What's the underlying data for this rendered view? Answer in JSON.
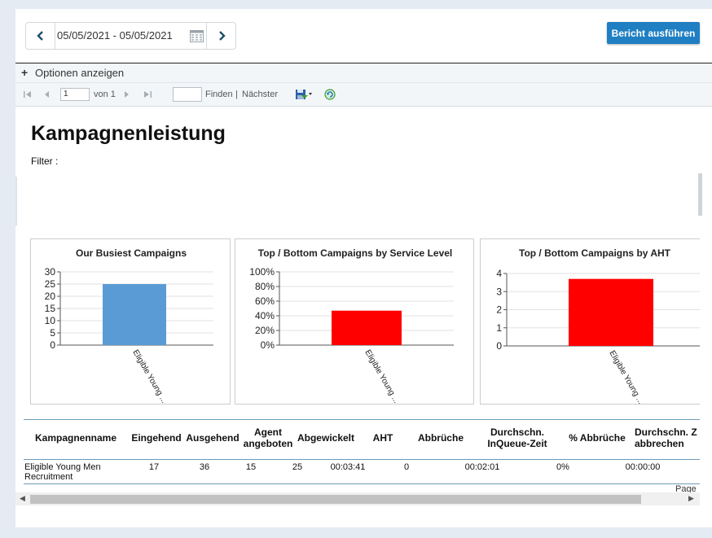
{
  "header": {
    "date_range": "05/05/2021 - 05/05/2021",
    "run_button": "Bericht ausführen"
  },
  "options": {
    "toggle_label": "Optionen anzeigen"
  },
  "toolbar": {
    "page_value": "1",
    "of_label": "von 1",
    "find_label": "Finden",
    "separator": "|",
    "next_label": "Nächster"
  },
  "report": {
    "title": "Kampagnenleistung",
    "filter_label": "Filter :"
  },
  "colors": {
    "accent": "#1f7fc2",
    "bar_blue": "#5b9bd5",
    "bar_red": "#ff0000"
  },
  "chart_data": [
    {
      "type": "bar",
      "title": "Our Busiest Campaigns",
      "categories": [
        "Eligible Young ..."
      ],
      "values": [
        25
      ],
      "ylim": [
        0,
        30
      ],
      "yticks": [
        "30",
        "25",
        "20",
        "15",
        "10",
        "5",
        "0"
      ],
      "color": "#5b9bd5",
      "grid": true
    },
    {
      "type": "bar",
      "title": "Top  / Bottom  Campaigns by Service Level",
      "categories": [
        "Eligible Young ..."
      ],
      "values": [
        47
      ],
      "ylim": [
        0,
        100
      ],
      "yticks": [
        "100%",
        "80%",
        "60%",
        "40%",
        "20%",
        "0%"
      ],
      "color": "#ff0000",
      "grid": true
    },
    {
      "type": "bar",
      "title": "Top  / Bottom  Campaigns by AHT",
      "categories": [
        "Eligible Young ..."
      ],
      "values": [
        3.7
      ],
      "ylim": [
        0,
        4
      ],
      "yticks": [
        "4",
        "3",
        "2",
        "1",
        "0"
      ],
      "color": "#ff0000",
      "grid": true
    }
  ],
  "table": {
    "headers": [
      "Kampagnenname",
      "Eingehend",
      "Ausgehend",
      "Agent\nangeboten",
      "Abgewickelt",
      "AHT",
      "Abbrüche",
      "Durchschn.\nInQueue-Zeit",
      "% Abbrüche",
      "Durchschn. Z\nabbrechen"
    ],
    "rows": [
      [
        "Eligible Young Men Recruitment",
        "17",
        "36",
        "15",
        "25",
        "00:03:41",
        "0",
        "00:02:01",
        "0%",
        "00:00:00"
      ]
    ]
  },
  "footer": {
    "page_label": "Page"
  }
}
